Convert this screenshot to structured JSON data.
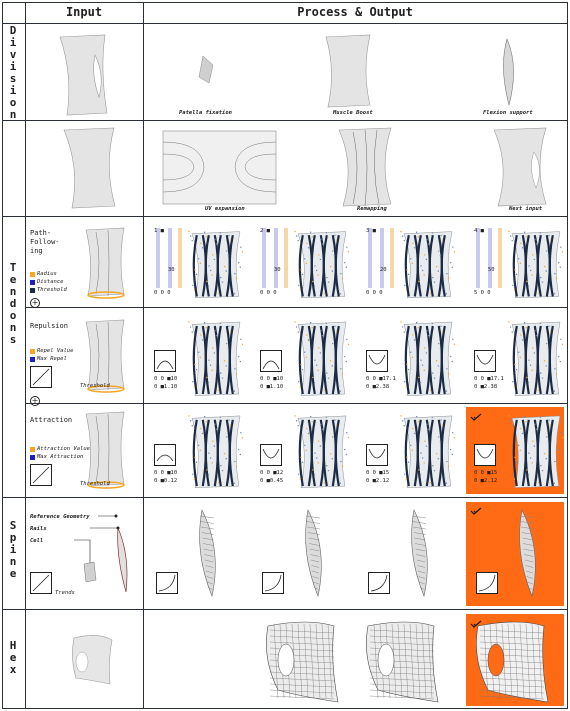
{
  "headers": {
    "input": "Input",
    "process": "Process & Output"
  },
  "rows": {
    "division": {
      "label": "D\ni\nv\ni\ns\ni\no\nn",
      "captions": [
        "Patella fixation",
        "Muscle Boost",
        "Flexion support"
      ]
    },
    "tendons": {
      "label": "T\ne\nn\nd\no\nn\ns",
      "captions": [
        "UV expansion",
        "Remapping",
        "Next input"
      ],
      "path_following": {
        "title": "Path-\nFollow-\ning",
        "legend": [
          "Radius",
          "Distance",
          "Threshold"
        ],
        "readouts": [
          {
            "a": "1",
            "b": "30",
            "c": "0",
            "d": "0",
            "e": "0"
          },
          {
            "a": "2",
            "b": "30",
            "c": "0",
            "d": "0",
            "e": "0"
          },
          {
            "a": "3",
            "b": "20",
            "c": "0",
            "d": "0",
            "e": "0"
          },
          {
            "a": "4",
            "b": "50",
            "c": "5",
            "d": "0",
            "e": "0"
          }
        ]
      },
      "repulsion": {
        "title": "Repulsion",
        "legend": [
          "Repel Value",
          "Max Repel"
        ],
        "graph_label": "Threshold",
        "readouts": [
          {
            "top": "0 0 ■10",
            "bot": "0 ■1.10"
          },
          {
            "top": "0 0 ■10",
            "bot": "0 ■1.10"
          },
          {
            "top": "0 0 ■17.1",
            "bot": "0 ■2.38"
          },
          {
            "top": "0 0 ■17.1",
            "bot": "0 ■2.38"
          }
        ]
      },
      "attraction": {
        "title": "Attraction",
        "legend": [
          "Attraction Value",
          "Max Attraction"
        ],
        "graph_label": "Threshold",
        "readouts": [
          {
            "top": "0 0 ■10",
            "bot": "0 ■0.12"
          },
          {
            "top": "0 0 ■12",
            "bot": "0 ■0.45"
          },
          {
            "top": "0 0 ■15",
            "bot": "0 ■2.12"
          },
          {
            "top": "0 0 ■15",
            "bot": "0 ■2.12"
          }
        ]
      }
    },
    "spine": {
      "label": "S\np\ni\nn\ne",
      "annotations": [
        "Reference Geometry",
        "Rails",
        "Cell"
      ],
      "graph_label": "Trends"
    },
    "hex": {
      "label": "H\ne\nx"
    }
  },
  "colors": {
    "orange": "#ff6a14",
    "blue": "#1f1fbf",
    "lightblue": "#c8c8f0",
    "lightorange": "#f7d7a8",
    "navy": "#1d2a44"
  },
  "icons": [
    "check-icon",
    "plus-circle-icon"
  ]
}
